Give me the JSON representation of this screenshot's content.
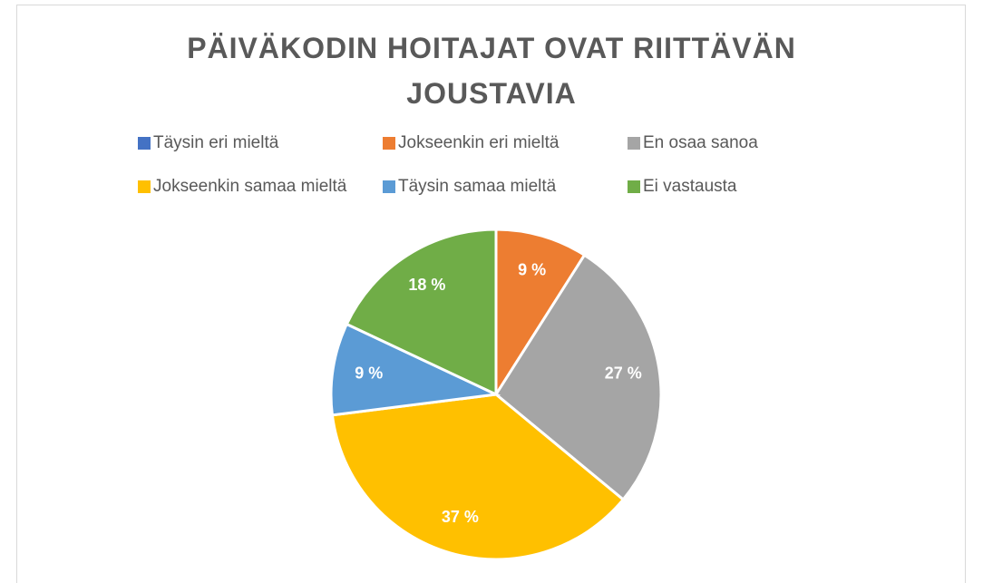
{
  "chart_data": {
    "type": "pie",
    "title": "PÄIVÄKODIN HOITAJAT OVAT RIITTÄVÄN JOUSTAVIA",
    "categories": [
      "Täysin eri mieltä",
      "Jokseenkin eri mieltä",
      "En osaa sanoa",
      "Jokseenkin samaa mieltä",
      "Täysin samaa mieltä",
      "Ei vastausta"
    ],
    "values": [
      0,
      9,
      27,
      37,
      9,
      18
    ],
    "value_labels": [
      null,
      "9 %",
      "27 %",
      "37 %",
      "9 %",
      "18 %"
    ],
    "colors": [
      "#4472c4",
      "#ed7d31",
      "#a5a5a5",
      "#ffc000",
      "#5b9bd5",
      "#70ad47"
    ],
    "legend": "top"
  }
}
